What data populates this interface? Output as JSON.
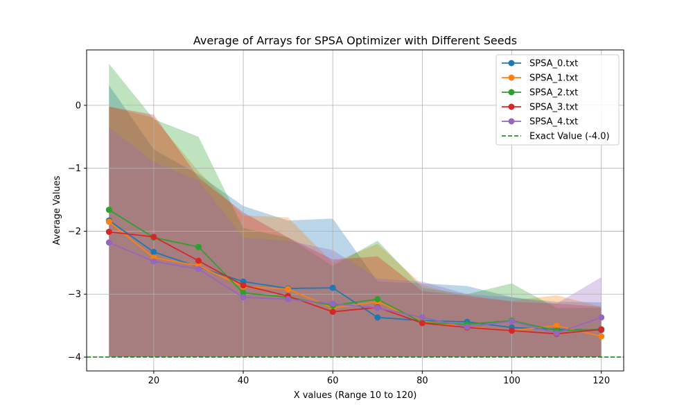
{
  "chart_data": {
    "type": "line",
    "title": "Average of Arrays for SPSA Optimizer with Different Seeds",
    "xlabel": "X values (Range 10 to 120)",
    "ylabel": "Average Values",
    "xlim": [
      5,
      125
    ],
    "ylim": [
      -4.22,
      0.88
    ],
    "xticks": [
      20,
      40,
      60,
      80,
      100,
      120
    ],
    "yticks": [
      -4,
      -3,
      -2,
      -1,
      0
    ],
    "grid": true,
    "legend_position": "top-right",
    "x": [
      10,
      20,
      30,
      40,
      50,
      60,
      70,
      80,
      90,
      100,
      110,
      120
    ],
    "series": [
      {
        "name": "SPSA_0.txt",
        "color": "#1f77b4",
        "values": [
          -1.83,
          -2.33,
          -2.57,
          -2.8,
          -2.91,
          -2.9,
          -3.37,
          -3.42,
          -3.44,
          -3.53,
          -3.56,
          -3.57
        ],
        "band_upper": [
          0.32,
          -0.7,
          -1.1,
          -1.6,
          -1.83,
          -1.8,
          -2.8,
          -2.83,
          -2.87,
          -3.05,
          -3.12,
          -3.13
        ]
      },
      {
        "name": "SPSA_1.txt",
        "color": "#ff7f0e",
        "values": [
          -1.85,
          -2.42,
          -2.55,
          -2.88,
          -2.92,
          -3.22,
          -3.12,
          -3.43,
          -3.52,
          -3.58,
          -3.5,
          -3.67
        ],
        "band_upper": [
          -0.02,
          -0.2,
          -1.05,
          -1.75,
          -1.78,
          -2.5,
          -2.2,
          -2.85,
          -3.05,
          -3.1,
          -3.02,
          -3.2
        ]
      },
      {
        "name": "SPSA_2.txt",
        "color": "#2ca02c",
        "values": [
          -1.66,
          -2.1,
          -2.25,
          -2.98,
          -3.05,
          -3.18,
          -3.08,
          -3.45,
          -3.48,
          -3.42,
          -3.58,
          -3.56
        ],
        "band_upper": [
          0.66,
          -0.22,
          -0.5,
          -1.95,
          -2.1,
          -2.55,
          -2.15,
          -2.9,
          -3.0,
          -2.83,
          -3.22,
          -3.22
        ]
      },
      {
        "name": "SPSA_3.txt",
        "color": "#d62728",
        "values": [
          -2.01,
          -2.09,
          -2.47,
          -2.86,
          -3.03,
          -3.28,
          -3.21,
          -3.46,
          -3.53,
          -3.58,
          -3.63,
          -3.56
        ],
        "band_upper": [
          -0.02,
          -0.15,
          -1.15,
          -1.7,
          -2.1,
          -2.45,
          -2.4,
          -2.95,
          -3.02,
          -3.12,
          -3.15,
          -3.2
        ]
      },
      {
        "name": "SPSA_4.txt",
        "color": "#9467bd",
        "values": [
          -2.18,
          -2.48,
          -2.6,
          -3.05,
          -3.08,
          -3.15,
          -3.22,
          -3.37,
          -3.52,
          -3.43,
          -3.62,
          -3.37
        ],
        "band_upper": [
          -0.35,
          -0.9,
          -1.2,
          -2.1,
          -2.15,
          -2.3,
          -2.75,
          -2.8,
          -3.0,
          -3.05,
          -3.15,
          -2.73
        ]
      }
    ],
    "band_lower": -4.0,
    "reference_line": {
      "name": "Exact Value (-4.0)",
      "value": -4.0,
      "color": "#008000"
    }
  }
}
